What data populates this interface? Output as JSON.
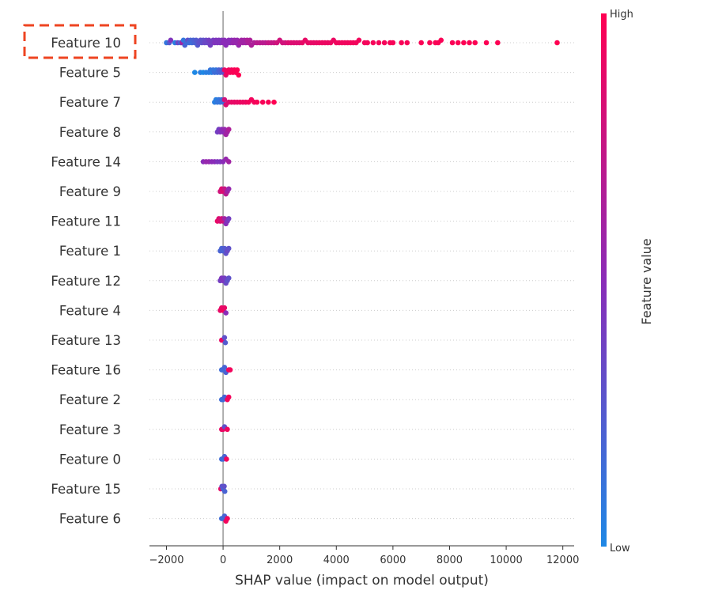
{
  "chart_data": {
    "type": "scatter",
    "subtype": "shap-beeswarm",
    "xlabel": "SHAP value (impact on model output)",
    "xlim": [
      -2600,
      12400
    ],
    "xticks": [
      -2000,
      0,
      2000,
      4000,
      6000,
      8000,
      10000,
      12000
    ],
    "xtick_labels": [
      "−2000",
      "0",
      "2000",
      "4000",
      "6000",
      "8000",
      "10000",
      "12000"
    ],
    "zero_line": 0,
    "highlighted_feature": "Feature 10",
    "colorbar": {
      "title": "Feature value",
      "high_label": "High",
      "low_label": "Low",
      "low_color": "#1e88e5",
      "high_color": "#ff0052"
    },
    "features": [
      {
        "name": "Feature 10",
        "points": [
          [
            -2000,
            0.1
          ],
          [
            -1900,
            0.25
          ],
          [
            -1850,
            0.45
          ],
          [
            -1700,
            0.05
          ],
          [
            -1600,
            0.35
          ],
          [
            -1500,
            0.15
          ],
          [
            -1450,
            0.6
          ],
          [
            -1400,
            0.1
          ],
          [
            -1350,
            0.2
          ],
          [
            -1300,
            0.15
          ],
          [
            -1250,
            0.3
          ],
          [
            -1200,
            0.15
          ],
          [
            -1150,
            0.2
          ],
          [
            -1100,
            0.15
          ],
          [
            -1050,
            0.2
          ],
          [
            -1000,
            0.2
          ],
          [
            -950,
            0.25
          ],
          [
            -900,
            0.25
          ],
          [
            -850,
            0.3
          ],
          [
            -800,
            0.3
          ],
          [
            -750,
            0.3
          ],
          [
            -700,
            0.3
          ],
          [
            -650,
            0.35
          ],
          [
            -600,
            0.35
          ],
          [
            -550,
            0.35
          ],
          [
            -500,
            0.4
          ],
          [
            -450,
            0.4
          ],
          [
            -400,
            0.4
          ],
          [
            -350,
            0.4
          ],
          [
            -300,
            0.45
          ],
          [
            -250,
            0.45
          ],
          [
            -200,
            0.45
          ],
          [
            -150,
            0.45
          ],
          [
            -100,
            0.45
          ],
          [
            -50,
            0.45
          ],
          [
            0,
            0.5
          ],
          [
            50,
            0.5
          ],
          [
            100,
            0.5
          ],
          [
            150,
            0.5
          ],
          [
            200,
            0.5
          ],
          [
            250,
            0.5
          ],
          [
            300,
            0.5
          ],
          [
            350,
            0.55
          ],
          [
            400,
            0.55
          ],
          [
            450,
            0.55
          ],
          [
            500,
            0.55
          ],
          [
            550,
            0.55
          ],
          [
            600,
            0.6
          ],
          [
            650,
            0.6
          ],
          [
            700,
            0.6
          ],
          [
            750,
            0.6
          ],
          [
            800,
            0.6
          ],
          [
            850,
            0.65
          ],
          [
            900,
            0.65
          ],
          [
            950,
            0.65
          ],
          [
            1000,
            0.65
          ],
          [
            1100,
            0.65
          ],
          [
            1200,
            0.7
          ],
          [
            1300,
            0.7
          ],
          [
            1400,
            0.7
          ],
          [
            1500,
            0.7
          ],
          [
            1600,
            0.75
          ],
          [
            1700,
            0.75
          ],
          [
            1800,
            0.75
          ],
          [
            1900,
            0.8
          ],
          [
            2000,
            0.8
          ],
          [
            2100,
            0.8
          ],
          [
            2200,
            0.8
          ],
          [
            2300,
            0.85
          ],
          [
            2400,
            0.85
          ],
          [
            2500,
            0.85
          ],
          [
            2600,
            0.85
          ],
          [
            2700,
            0.85
          ],
          [
            2800,
            0.9
          ],
          [
            2900,
            0.9
          ],
          [
            3000,
            0.9
          ],
          [
            3100,
            0.9
          ],
          [
            3200,
            0.9
          ],
          [
            3300,
            0.9
          ],
          [
            3400,
            0.92
          ],
          [
            3500,
            0.92
          ],
          [
            3600,
            0.92
          ],
          [
            3700,
            0.92
          ],
          [
            3800,
            0.92
          ],
          [
            3900,
            0.92
          ],
          [
            4000,
            0.94
          ],
          [
            4100,
            0.94
          ],
          [
            4200,
            0.94
          ],
          [
            4300,
            0.94
          ],
          [
            4400,
            0.94
          ],
          [
            4500,
            0.95
          ],
          [
            4600,
            0.95
          ],
          [
            4700,
            0.95
          ],
          [
            4800,
            0.95
          ],
          [
            5000,
            0.95
          ],
          [
            5100,
            0.96
          ],
          [
            5300,
            0.96
          ],
          [
            5500,
            0.96
          ],
          [
            5700,
            0.96
          ],
          [
            5900,
            0.97
          ],
          [
            6000,
            0.97
          ],
          [
            6300,
            0.97
          ],
          [
            6500,
            0.97
          ],
          [
            7000,
            0.98
          ],
          [
            7300,
            0.98
          ],
          [
            7500,
            0.98
          ],
          [
            7600,
            0.98
          ],
          [
            7700,
            0.98
          ],
          [
            8100,
            0.98
          ],
          [
            8300,
            0.99
          ],
          [
            8500,
            0.99
          ],
          [
            8700,
            0.99
          ],
          [
            8900,
            0.99
          ],
          [
            9300,
            0.99
          ],
          [
            9700,
            0.99
          ],
          [
            11800,
            1.0
          ]
        ]
      },
      {
        "name": "Feature 5",
        "points": [
          [
            -1000,
            0.0
          ],
          [
            -800,
            0.05
          ],
          [
            -700,
            0.0
          ],
          [
            -600,
            0.05
          ],
          [
            -500,
            0.05
          ],
          [
            -450,
            0.1
          ],
          [
            -400,
            0.05
          ],
          [
            -350,
            0.1
          ],
          [
            -300,
            0.15
          ],
          [
            -250,
            0.1
          ],
          [
            -200,
            0.15
          ],
          [
            -150,
            0.2
          ],
          [
            -100,
            0.2
          ],
          [
            -50,
            0.25
          ],
          [
            0,
            0.3
          ],
          [
            50,
            0.9
          ],
          [
            100,
            0.9
          ],
          [
            150,
            0.95
          ],
          [
            200,
            0.95
          ],
          [
            250,
            0.95
          ],
          [
            300,
            0.95
          ],
          [
            350,
            0.98
          ],
          [
            400,
            0.98
          ],
          [
            450,
            0.98
          ],
          [
            500,
            0.99
          ],
          [
            550,
            1.0
          ]
        ]
      },
      {
        "name": "Feature 7",
        "points": [
          [
            -300,
            0.05
          ],
          [
            -250,
            0.05
          ],
          [
            -200,
            0.1
          ],
          [
            -150,
            0.1
          ],
          [
            -100,
            0.1
          ],
          [
            -50,
            0.15
          ],
          [
            0,
            0.15
          ],
          [
            50,
            0.8
          ],
          [
            100,
            0.85
          ],
          [
            200,
            0.85
          ],
          [
            300,
            0.9
          ],
          [
            400,
            0.9
          ],
          [
            500,
            0.9
          ],
          [
            600,
            0.92
          ],
          [
            700,
            0.92
          ],
          [
            800,
            0.92
          ],
          [
            900,
            0.95
          ],
          [
            1000,
            0.95
          ],
          [
            1100,
            0.95
          ],
          [
            1200,
            0.97
          ],
          [
            1400,
            0.97
          ],
          [
            1600,
            0.98
          ],
          [
            1800,
            1.0
          ]
        ]
      },
      {
        "name": "Feature 8",
        "points": [
          [
            -200,
            0.4
          ],
          [
            -150,
            0.4
          ],
          [
            -100,
            0.45
          ],
          [
            -50,
            0.5
          ],
          [
            0,
            0.5
          ],
          [
            50,
            0.55
          ],
          [
            100,
            0.6
          ],
          [
            150,
            0.6
          ],
          [
            200,
            0.65
          ]
        ]
      },
      {
        "name": "Feature 14",
        "points": [
          [
            -700,
            0.5
          ],
          [
            -600,
            0.55
          ],
          [
            -500,
            0.55
          ],
          [
            -400,
            0.5
          ],
          [
            -300,
            0.5
          ],
          [
            -200,
            0.45
          ],
          [
            -100,
            0.45
          ],
          [
            0,
            0.5
          ],
          [
            100,
            0.55
          ],
          [
            200,
            0.6
          ]
        ]
      },
      {
        "name": "Feature 9",
        "points": [
          [
            -100,
            0.8
          ],
          [
            -50,
            0.85
          ],
          [
            0,
            0.85
          ],
          [
            50,
            0.75
          ],
          [
            100,
            0.7
          ],
          [
            150,
            0.6
          ],
          [
            200,
            0.55
          ]
        ]
      },
      {
        "name": "Feature 11",
        "points": [
          [
            -200,
            0.9
          ],
          [
            -150,
            0.85
          ],
          [
            -100,
            0.85
          ],
          [
            -50,
            0.8
          ],
          [
            0,
            0.8
          ],
          [
            50,
            0.6
          ],
          [
            100,
            0.5
          ],
          [
            150,
            0.45
          ],
          [
            200,
            0.4
          ]
        ]
      },
      {
        "name": "Feature 1",
        "points": [
          [
            -100,
            0.2
          ],
          [
            -50,
            0.2
          ],
          [
            0,
            0.2
          ],
          [
            50,
            0.25
          ],
          [
            100,
            0.3
          ],
          [
            150,
            0.35
          ],
          [
            200,
            0.3
          ]
        ]
      },
      {
        "name": "Feature 12",
        "points": [
          [
            -100,
            0.4
          ],
          [
            -50,
            0.45
          ],
          [
            0,
            0.45
          ],
          [
            50,
            0.4
          ],
          [
            100,
            0.35
          ],
          [
            150,
            0.3
          ],
          [
            200,
            0.3
          ]
        ]
      },
      {
        "name": "Feature 4",
        "points": [
          [
            -100,
            0.9
          ],
          [
            -50,
            0.9
          ],
          [
            0,
            0.95
          ],
          [
            50,
            0.9
          ],
          [
            100,
            0.5
          ]
        ]
      },
      {
        "name": "Feature 13",
        "points": [
          [
            -50,
            0.9
          ],
          [
            0,
            0.9
          ],
          [
            50,
            0.3
          ],
          [
            80,
            0.25
          ]
        ]
      },
      {
        "name": "Feature 16",
        "points": [
          [
            -50,
            0.15
          ],
          [
            0,
            0.15
          ],
          [
            50,
            0.2
          ],
          [
            100,
            0.2
          ],
          [
            200,
            0.95
          ],
          [
            250,
            0.95
          ]
        ]
      },
      {
        "name": "Feature 2",
        "points": [
          [
            -50,
            0.15
          ],
          [
            0,
            0.15
          ],
          [
            50,
            0.2
          ],
          [
            150,
            0.95
          ],
          [
            200,
            0.95
          ]
        ]
      },
      {
        "name": "Feature 3",
        "points": [
          [
            -50,
            0.9
          ],
          [
            0,
            0.9
          ],
          [
            50,
            0.3
          ],
          [
            150,
            0.95
          ]
        ]
      },
      {
        "name": "Feature 0",
        "points": [
          [
            -50,
            0.15
          ],
          [
            0,
            0.15
          ],
          [
            50,
            0.2
          ],
          [
            120,
            0.95
          ]
        ]
      },
      {
        "name": "Feature 15",
        "points": [
          [
            -80,
            0.9
          ],
          [
            -40,
            0.3
          ],
          [
            0,
            0.2
          ],
          [
            40,
            0.3
          ],
          [
            60,
            0.2
          ]
        ]
      },
      {
        "name": "Feature 6",
        "points": [
          [
            -50,
            0.15
          ],
          [
            0,
            0.15
          ],
          [
            50,
            0.2
          ],
          [
            100,
            0.95
          ],
          [
            150,
            0.95
          ]
        ]
      }
    ]
  }
}
